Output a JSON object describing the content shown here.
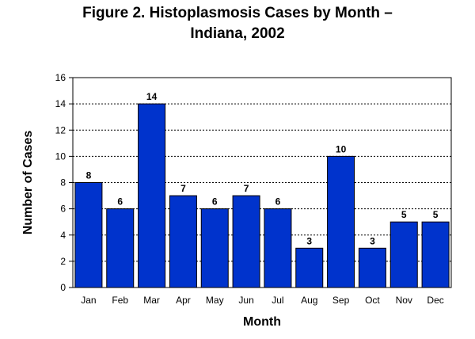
{
  "chart_data": {
    "type": "bar",
    "title_lines": [
      "Figure 2. Histoplasmosis Cases by Month –",
      "Indiana, 2002"
    ],
    "xlabel": "Month",
    "ylabel": "Number of Cases",
    "categories": [
      "Jan",
      "Feb",
      "Mar",
      "Apr",
      "May",
      "Jun",
      "Jul",
      "Aug",
      "Sep",
      "Oct",
      "Nov",
      "Dec"
    ],
    "values": [
      8,
      6,
      14,
      7,
      6,
      7,
      6,
      3,
      10,
      3,
      5,
      5
    ],
    "ylim": [
      0,
      16
    ],
    "yticks": [
      0,
      2,
      4,
      6,
      8,
      10,
      12,
      14,
      16
    ],
    "grid": true,
    "legend": "none",
    "bar_color": "#0033cc"
  }
}
